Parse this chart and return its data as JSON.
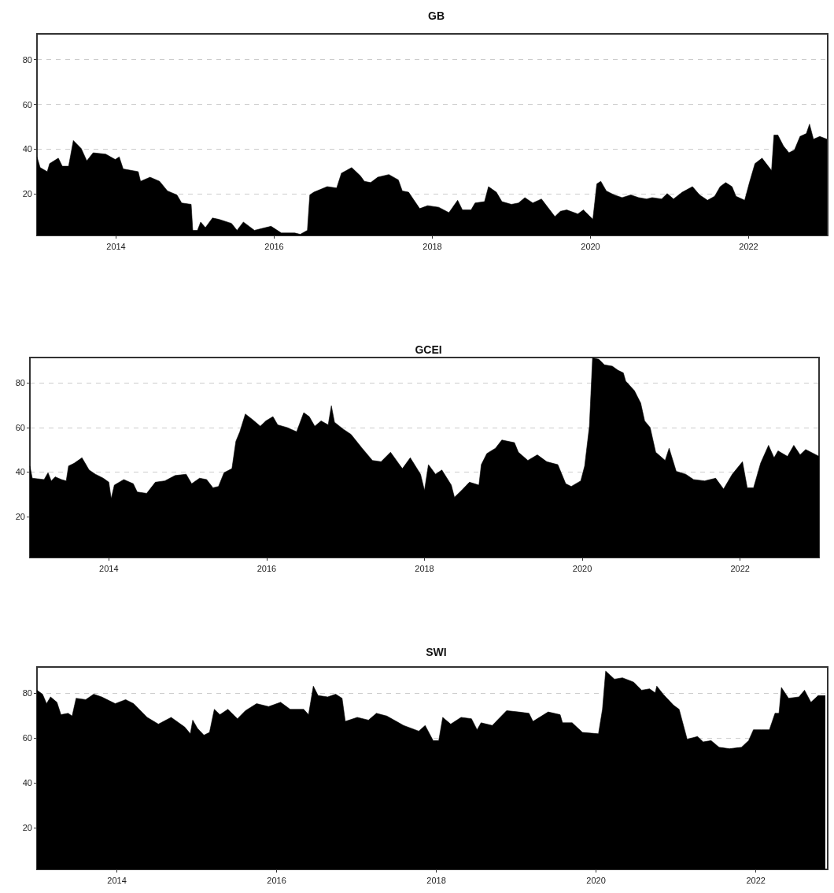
{
  "chart_data": [
    {
      "type": "area",
      "title": "GB",
      "xlim": [
        2013,
        2023
      ],
      "xticks": [
        2014,
        2016,
        2018,
        2020,
        2022
      ],
      "ylim": [
        1.5,
        91.5
      ],
      "yticks": [
        20,
        40,
        60,
        80
      ],
      "grid": "y",
      "marker": "none",
      "series": [
        {
          "color": "#000000",
          "x": [
            2013.0,
            2013.04,
            2013.13,
            2013.16,
            2013.27,
            2013.32,
            2013.4,
            2013.46,
            2013.56,
            2013.63,
            2013.71,
            2013.87,
            2013.99,
            2014.04,
            2014.09,
            2014.28,
            2014.31,
            2014.43,
            2014.55,
            2014.65,
            2014.77,
            2014.83,
            2014.95,
            2014.97,
            2015.03,
            2015.07,
            2015.13,
            2015.22,
            2015.3,
            2015.46,
            2015.53,
            2015.61,
            2015.75,
            2015.96,
            2016.09,
            2016.26,
            2016.33,
            2016.42,
            2016.45,
            2016.5,
            2016.67,
            2016.79,
            2016.85,
            2016.98,
            2017.09,
            2017.14,
            2017.22,
            2017.31,
            2017.45,
            2017.57,
            2017.62,
            2017.7,
            2017.84,
            2017.94,
            2018.08,
            2018.21,
            2018.32,
            2018.38,
            2018.49,
            2018.54,
            2018.66,
            2018.71,
            2018.81,
            2018.88,
            2019.0,
            2019.09,
            2019.17,
            2019.27,
            2019.38,
            2019.46,
            2019.55,
            2019.62,
            2019.7,
            2019.84,
            2019.91,
            2020.03,
            2020.08,
            2020.13,
            2020.2,
            2020.3,
            2020.4,
            2020.51,
            2020.61,
            2020.71,
            2020.78,
            2020.9,
            2020.97,
            2021.05,
            2021.16,
            2021.29,
            2021.38,
            2021.48,
            2021.57,
            2021.64,
            2021.71,
            2021.79,
            2021.84,
            2021.95,
            2022.01,
            2022.08,
            2022.17,
            2022.29,
            2022.32,
            2022.37,
            2022.44,
            2022.51,
            2022.58,
            2022.65,
            2022.73,
            2022.77,
            2022.82,
            2022.9,
            2022.99
          ],
          "values": [
            36.6,
            31.8,
            30,
            33.6,
            36,
            32.4,
            32.4,
            43.9,
            40.3,
            34.8,
            38.4,
            37.8,
            35.4,
            36.6,
            31.2,
            30,
            25.7,
            27.5,
            25.7,
            21.4,
            19.6,
            16,
            15.4,
            3.8,
            3.8,
            7.5,
            5,
            9.3,
            8.7,
            6.9,
            3.8,
            7.5,
            3.8,
            5.6,
            2.6,
            2.6,
            2,
            3.8,
            19.6,
            20.8,
            23.3,
            22.7,
            29.3,
            31.8,
            28.1,
            25.7,
            25.1,
            27.5,
            28.7,
            26.3,
            21.4,
            20.8,
            13.5,
            14.8,
            14.1,
            11.7,
            17.2,
            12.9,
            12.9,
            16,
            16.6,
            23.3,
            20.8,
            16.6,
            15.4,
            16,
            18.4,
            16,
            17.8,
            14.1,
            9.9,
            12.3,
            12.9,
            11.1,
            12.9,
            8.7,
            24.5,
            25.7,
            21.4,
            19.6,
            18.4,
            19.6,
            18.4,
            17.8,
            18.4,
            17.8,
            20.2,
            17.8,
            20.8,
            23.3,
            19.6,
            17.2,
            19,
            23.3,
            25.1,
            23.3,
            19,
            17.2,
            25.1,
            33.6,
            36,
            30.5,
            46.3,
            46.3,
            41.5,
            38.4,
            39.7,
            45.7,
            47,
            51.2,
            44.5,
            45.7,
            44.5
          ]
        }
      ]
    },
    {
      "type": "area",
      "title": "GCEI",
      "xlim": [
        2013,
        2023
      ],
      "xticks": [
        2014,
        2016,
        2018,
        2020,
        2022
      ],
      "ylim": [
        1.5,
        91.5
      ],
      "yticks": [
        20,
        40,
        60,
        80
      ],
      "grid": "y",
      "marker": "none",
      "series": [
        {
          "color": "#000000",
          "x": [
            2013.0,
            2013.03,
            2013.18,
            2013.23,
            2013.27,
            2013.32,
            2013.4,
            2013.46,
            2013.49,
            2013.56,
            2013.66,
            2013.75,
            2013.83,
            2013.93,
            2014.0,
            2014.03,
            2014.07,
            2014.19,
            2014.31,
            2014.36,
            2014.48,
            2014.59,
            2014.71,
            2014.84,
            2014.98,
            2015.05,
            2015.15,
            2015.24,
            2015.32,
            2015.39,
            2015.46,
            2015.56,
            2015.61,
            2015.66,
            2015.73,
            2015.82,
            2015.92,
            2015.99,
            2016.08,
            2016.14,
            2016.26,
            2016.38,
            2016.47,
            2016.54,
            2016.61,
            2016.69,
            2016.78,
            2016.82,
            2016.86,
            2016.97,
            2017.07,
            2017.21,
            2017.34,
            2017.45,
            2017.57,
            2017.72,
            2017.82,
            2017.95,
            2018.0,
            2018.05,
            2018.14,
            2018.22,
            2018.34,
            2018.38,
            2018.47,
            2018.57,
            2018.69,
            2018.72,
            2018.79,
            2018.9,
            2018.98,
            2019.14,
            2019.19,
            2019.31,
            2019.43,
            2019.55,
            2019.69,
            2019.79,
            2019.86,
            2019.98,
            2020.03,
            2020.09,
            2020.13,
            2020.21,
            2020.28,
            2020.38,
            2020.45,
            2020.52,
            2020.55,
            2020.66,
            2020.74,
            2020.79,
            2020.86,
            2020.93,
            2021.05,
            2021.1,
            2021.19,
            2021.31,
            2021.41,
            2021.55,
            2021.69,
            2021.79,
            2021.9,
            2022.03,
            2022.09,
            2022.17,
            2022.26,
            2022.36,
            2022.43,
            2022.48,
            2022.6,
            2022.68,
            2022.76,
            2022.83,
            2022.93,
            2023.0
          ],
          "values": [
            42.7,
            37.2,
            36.6,
            39.7,
            36,
            37.8,
            36.6,
            36,
            42.7,
            43.9,
            46.4,
            40.9,
            39,
            37.2,
            35.4,
            28,
            34.1,
            36.6,
            34.7,
            31,
            30.4,
            35.4,
            36,
            38.4,
            39,
            34.7,
            37.2,
            36.6,
            32.9,
            33.5,
            39.7,
            41.5,
            53.8,
            58.1,
            66.1,
            63.6,
            60.6,
            63,
            64.9,
            61.2,
            60,
            58.1,
            66.7,
            64.9,
            60.6,
            63,
            61.2,
            69.8,
            62.4,
            59.3,
            56.9,
            50.7,
            45.2,
            44.6,
            48.9,
            41.5,
            46.4,
            39,
            31.7,
            43.3,
            39,
            40.9,
            34.1,
            28.6,
            31.7,
            35.4,
            34.1,
            43.3,
            48.3,
            50.7,
            54.4,
            53.2,
            48.9,
            45.2,
            47.7,
            44.6,
            43.3,
            34.7,
            33.5,
            36,
            42.7,
            60.6,
            91.3,
            90.7,
            88.2,
            87.6,
            85.8,
            84.6,
            80.9,
            76.6,
            71,
            63,
            60,
            48.9,
            45.2,
            50.7,
            40.3,
            39,
            36.6,
            36,
            37.2,
            32.3,
            39,
            44.6,
            32.9,
            32.9,
            44,
            52,
            46.4,
            49.5,
            47,
            52,
            47.7,
            50.1,
            48.3,
            47
          ]
        }
      ]
    },
    {
      "type": "area",
      "title": "SWI",
      "xlim": [
        2013,
        2022.9
      ],
      "xticks": [
        2014,
        2016,
        2018,
        2020,
        2022
      ],
      "ylim": [
        1.5,
        91.5
      ],
      "yticks": [
        20,
        40,
        60,
        80
      ],
      "grid": "y",
      "marker": "none",
      "series": [
        {
          "color": "#000000",
          "x": [
            2013.0,
            2013.07,
            2013.12,
            2013.17,
            2013.25,
            2013.3,
            2013.39,
            2013.44,
            2013.49,
            2013.61,
            2013.71,
            2013.81,
            2013.98,
            2014.11,
            2014.21,
            2014.38,
            2014.52,
            2014.68,
            2014.85,
            2014.92,
            2014.95,
            2015.01,
            2015.09,
            2015.16,
            2015.22,
            2015.29,
            2015.39,
            2015.51,
            2015.61,
            2015.75,
            2015.9,
            2016.05,
            2016.17,
            2016.34,
            2016.4,
            2016.46,
            2016.52,
            2016.64,
            2016.74,
            2016.82,
            2016.86,
            2017.01,
            2017.15,
            2017.25,
            2017.38,
            2017.59,
            2017.78,
            2017.86,
            2017.96,
            2018.03,
            2018.08,
            2018.18,
            2018.31,
            2018.44,
            2018.51,
            2018.56,
            2018.7,
            2018.88,
            2019.03,
            2019.16,
            2019.21,
            2019.4,
            2019.55,
            2019.58,
            2019.7,
            2019.83,
            2020.03,
            2020.08,
            2020.12,
            2020.23,
            2020.33,
            2020.47,
            2020.57,
            2020.67,
            2020.74,
            2020.76,
            2020.84,
            2020.97,
            2021.04,
            2021.14,
            2021.27,
            2021.34,
            2021.44,
            2021.54,
            2021.67,
            2021.82,
            2021.91,
            2021.97,
            2022.07,
            2022.17,
            2022.24,
            2022.29,
            2022.32,
            2022.41,
            2022.54,
            2022.61,
            2022.69,
            2022.78,
            2022.87
          ],
          "values": [
            81.2,
            79.4,
            75.2,
            78.2,
            75.8,
            70.3,
            70.9,
            69.7,
            77.6,
            77,
            79.4,
            78.2,
            75.2,
            77,
            75.2,
            69.1,
            66.1,
            69.1,
            64.8,
            61.8,
            67.9,
            64.2,
            61.2,
            62.4,
            72.7,
            70.3,
            72.7,
            68.5,
            72.1,
            75.2,
            73.9,
            75.8,
            72.7,
            72.7,
            70.3,
            83,
            78.8,
            78.2,
            79.4,
            77.6,
            67.3,
            69.1,
            67.9,
            70.9,
            69.7,
            65.5,
            63,
            65.5,
            58.8,
            58.8,
            69.1,
            66.1,
            69.1,
            68.5,
            63.6,
            66.7,
            65.5,
            72.1,
            71.5,
            70.9,
            67.3,
            71.5,
            70.3,
            66.7,
            66.7,
            62.4,
            61.8,
            72.7,
            89.7,
            86.1,
            86.7,
            84.8,
            81.2,
            81.8,
            80,
            83,
            79.4,
            74.5,
            72.7,
            59.4,
            60.6,
            58.2,
            58.8,
            55.8,
            55.2,
            55.8,
            58.8,
            63.6,
            63.6,
            63.6,
            70.9,
            70.9,
            82.4,
            77.6,
            78.2,
            81.2,
            75.8,
            78.8,
            78.8
          ]
        }
      ]
    }
  ]
}
